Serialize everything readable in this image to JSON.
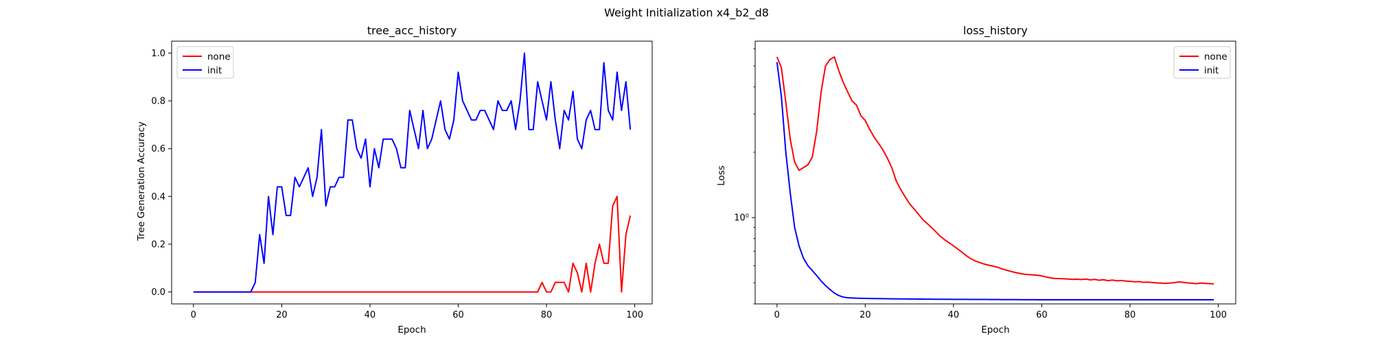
{
  "figure_title": "Weight Initialization x4_b2_d8",
  "chart_data": [
    {
      "type": "line",
      "title": "tree_acc_history",
      "xlabel": "Epoch",
      "ylabel": "Tree Generation Accuracy",
      "xlim": [
        -4.95,
        103.95
      ],
      "ylim": [
        -0.05,
        1.05
      ],
      "xticks": [
        0,
        20,
        40,
        60,
        80,
        100
      ],
      "yticks": [
        0.0,
        0.2,
        0.4,
        0.6,
        0.8,
        1.0
      ],
      "ytick_labels": [
        "0.0",
        "0.2",
        "0.4",
        "0.6",
        "0.8",
        "1.0"
      ],
      "legend_position": "top-left",
      "series": [
        {
          "name": "none",
          "color": "#ff0000",
          "values": [
            0,
            0,
            0,
            0,
            0,
            0,
            0,
            0,
            0,
            0,
            0,
            0,
            0,
            0,
            0,
            0,
            0,
            0,
            0,
            0,
            0,
            0,
            0,
            0,
            0,
            0,
            0,
            0,
            0,
            0,
            0,
            0,
            0,
            0,
            0,
            0,
            0,
            0,
            0,
            0,
            0,
            0,
            0,
            0,
            0,
            0,
            0,
            0,
            0,
            0,
            0,
            0,
            0,
            0,
            0,
            0,
            0,
            0,
            0,
            0,
            0,
            0,
            0,
            0,
            0,
            0,
            0,
            0,
            0,
            0,
            0,
            0,
            0,
            0,
            0,
            0,
            0,
            0,
            0,
            0.04,
            0,
            0,
            0.04,
            0.04,
            0.04,
            0,
            0.12,
            0.08,
            0,
            0.12,
            0,
            0.12,
            0.2,
            0.12,
            0.12,
            0.36,
            0.4,
            0,
            0.24,
            0.32
          ]
        },
        {
          "name": "init",
          "color": "#0000ff",
          "values": [
            0,
            0,
            0,
            0,
            0,
            0,
            0,
            0,
            0,
            0,
            0,
            0,
            0,
            0.0,
            0.04,
            0.24,
            0.12,
            0.4,
            0.24,
            0.44,
            0.44,
            0.32,
            0.32,
            0.48,
            0.44,
            0.48,
            0.52,
            0.4,
            0.48,
            0.68,
            0.36,
            0.44,
            0.44,
            0.48,
            0.48,
            0.72,
            0.72,
            0.6,
            0.56,
            0.64,
            0.44,
            0.6,
            0.52,
            0.64,
            0.64,
            0.64,
            0.6,
            0.52,
            0.52,
            0.76,
            0.68,
            0.6,
            0.76,
            0.6,
            0.64,
            0.72,
            0.8,
            0.68,
            0.64,
            0.72,
            0.92,
            0.8,
            0.76,
            0.72,
            0.72,
            0.76,
            0.76,
            0.72,
            0.68,
            0.8,
            0.76,
            0.76,
            0.8,
            0.68,
            0.8,
            1.0,
            0.68,
            0.68,
            0.88,
            0.8,
            0.72,
            0.88,
            0.72,
            0.6,
            0.76,
            0.72,
            0.84,
            0.64,
            0.6,
            0.72,
            0.76,
            0.68,
            0.68,
            0.96,
            0.76,
            0.72,
            0.92,
            0.76,
            0.88,
            0.68
          ]
        }
      ]
    },
    {
      "type": "line",
      "title": "loss_history",
      "xlabel": "Epoch",
      "ylabel": "Loss",
      "yscale": "log",
      "xlim": [
        -4.95,
        103.95
      ],
      "ylim": [
        0.4,
        6.5
      ],
      "xticks": [
        0,
        20,
        40,
        60,
        80,
        100
      ],
      "yticks": [
        1.0
      ],
      "ytick_labels": [
        "10⁰"
      ],
      "legend_position": "top-right",
      "series": [
        {
          "name": "none",
          "color": "#ff0000",
          "values": [
            5.5,
            4.9,
            3.4,
            2.3,
            1.8,
            1.65,
            1.7,
            1.75,
            1.9,
            2.5,
            3.8,
            5.0,
            5.35,
            5.5,
            4.75,
            4.2,
            3.8,
            3.45,
            3.3,
            2.95,
            2.8,
            2.55,
            2.35,
            2.2,
            2.05,
            1.88,
            1.7,
            1.48,
            1.35,
            1.25,
            1.16,
            1.1,
            1.04,
            0.98,
            0.94,
            0.9,
            0.86,
            0.82,
            0.79,
            0.765,
            0.74,
            0.715,
            0.69,
            0.665,
            0.645,
            0.63,
            0.62,
            0.61,
            0.603,
            0.597,
            0.59,
            0.58,
            0.572,
            0.565,
            0.558,
            0.553,
            0.548,
            0.546,
            0.544,
            0.542,
            0.538,
            0.532,
            0.527,
            0.524,
            0.523,
            0.522,
            0.521,
            0.519,
            0.52,
            0.518,
            0.521,
            0.516,
            0.519,
            0.514,
            0.517,
            0.512,
            0.515,
            0.511,
            0.513,
            0.51,
            0.508,
            0.506,
            0.507,
            0.503,
            0.504,
            0.502,
            0.5,
            0.499,
            0.497,
            0.499,
            0.501,
            0.505,
            0.503,
            0.5,
            0.498,
            0.496,
            0.499,
            0.497,
            0.496,
            0.495
          ]
        },
        {
          "name": "init",
          "color": "#0000ff",
          "values": [
            5.2,
            3.6,
            2.0,
            1.3,
            0.9,
            0.74,
            0.65,
            0.6,
            0.57,
            0.54,
            0.51,
            0.486,
            0.466,
            0.449,
            0.437,
            0.43,
            0.427,
            0.426,
            0.425,
            0.4245,
            0.424,
            0.4237,
            0.4234,
            0.4231,
            0.4228,
            0.4225,
            0.4222,
            0.422,
            0.4218,
            0.4216,
            0.4214,
            0.4212,
            0.421,
            0.4208,
            0.4206,
            0.4204,
            0.4203,
            0.4202,
            0.4201,
            0.42,
            0.4199,
            0.4198,
            0.4197,
            0.4196,
            0.4195,
            0.4194,
            0.4193,
            0.4192,
            0.4191,
            0.419,
            0.4189,
            0.4188,
            0.4187,
            0.4186,
            0.4185,
            0.4184,
            0.4183,
            0.4182,
            0.4181,
            0.418,
            0.418,
            0.418,
            0.418,
            0.418,
            0.418,
            0.418,
            0.418,
            0.418,
            0.418,
            0.418,
            0.418,
            0.418,
            0.418,
            0.418,
            0.418,
            0.418,
            0.418,
            0.418,
            0.418,
            0.418,
            0.418,
            0.418,
            0.418,
            0.418,
            0.418,
            0.418,
            0.418,
            0.418,
            0.418,
            0.418,
            0.418,
            0.418,
            0.418,
            0.418,
            0.418,
            0.418,
            0.418,
            0.418,
            0.418,
            0.418
          ]
        }
      ]
    }
  ]
}
